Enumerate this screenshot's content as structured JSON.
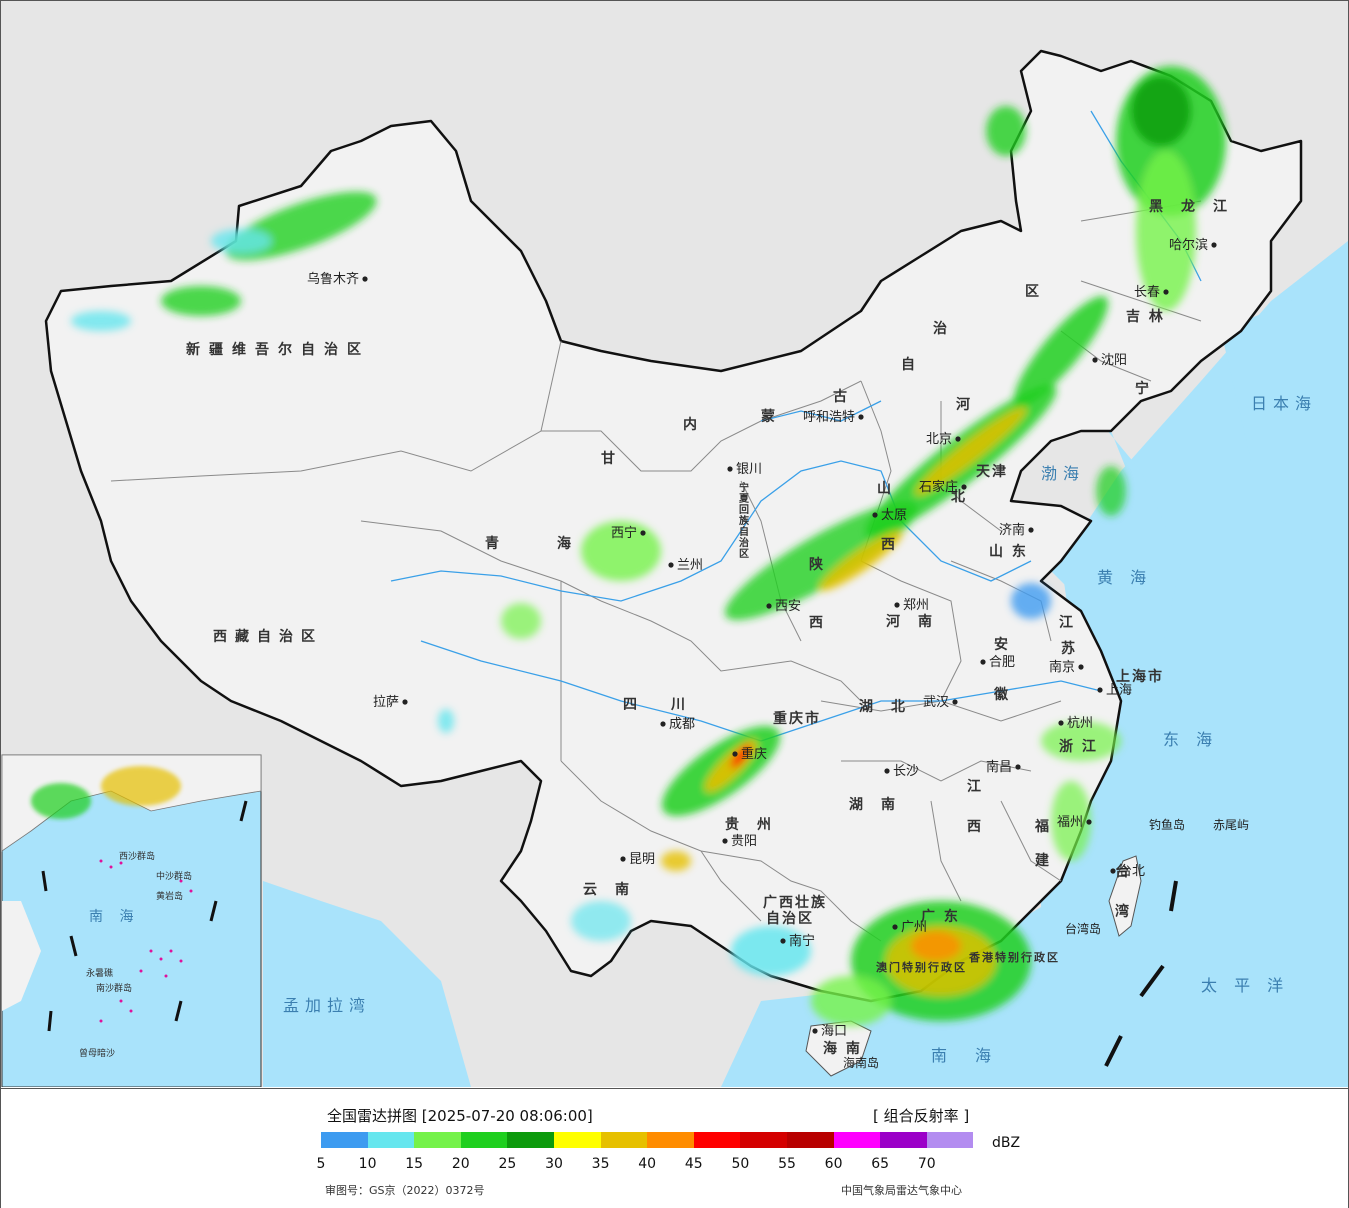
{
  "legend": {
    "title": "全国雷达拼图 [2025-07-20 08:06:00]",
    "product": "[ 组合反射率 ]",
    "unit": "dBZ",
    "ticks": [
      "5",
      "10",
      "15",
      "20",
      "25",
      "30",
      "35",
      "40",
      "45",
      "50",
      "55",
      "60",
      "65",
      "70"
    ],
    "colors": [
      "#3d9bf0",
      "#66e6ee",
      "#75f24a",
      "#1fcf1f",
      "#0c9a0c",
      "#ffff00",
      "#e6c000",
      "#ff8c00",
      "#ff0000",
      "#d40000",
      "#b80000",
      "#ff00ff",
      "#9b00c8",
      "#b38cf0"
    ],
    "approval": "审图号：GS京（2022）0372号",
    "credit": "中国气象局雷达气象中心"
  },
  "map": {
    "colors": {
      "land": "#f2f2f2",
      "sea": "#a9e3fb",
      "outside": "#e6e6e6",
      "border": "#111111",
      "province": "#888888",
      "river": "#3aa0e8"
    },
    "province_labels": [
      {
        "id": "xinjiang",
        "text": "新疆维吾尔自治区"
      },
      {
        "id": "xizang",
        "text": "西藏自治区"
      },
      {
        "id": "qinghai1",
        "text": "青"
      },
      {
        "id": "qinghai2",
        "text": "海"
      },
      {
        "id": "gansu",
        "text": "甘"
      },
      {
        "id": "neimeng1",
        "text": "内"
      },
      {
        "id": "neimeng2",
        "text": "蒙"
      },
      {
        "id": "neimeng3",
        "text": "古"
      },
      {
        "id": "neimeng4",
        "text": "自"
      },
      {
        "id": "neimeng5",
        "text": "治"
      },
      {
        "id": "neimeng6",
        "text": "区"
      },
      {
        "id": "heilongjiang",
        "text": "黑　龙　江"
      },
      {
        "id": "jilin",
        "text": "吉 林"
      },
      {
        "id": "liaoning",
        "text": "宁"
      },
      {
        "id": "hebei1",
        "text": "河"
      },
      {
        "id": "hebei2",
        "text": "北"
      },
      {
        "id": "tianjin",
        "text": "天津"
      },
      {
        "id": "shanxi1",
        "text": "山"
      },
      {
        "id": "shanxi2",
        "text": "西"
      },
      {
        "id": "shaanxi1",
        "text": "陕"
      },
      {
        "id": "shaanxi2",
        "text": "西"
      },
      {
        "id": "shandong",
        "text": "山 东"
      },
      {
        "id": "henan",
        "text": "河　南"
      },
      {
        "id": "jiangsu1",
        "text": "江"
      },
      {
        "id": "jiangsu2",
        "text": "苏"
      },
      {
        "id": "anhui1",
        "text": "安"
      },
      {
        "id": "anhui2",
        "text": "徽"
      },
      {
        "id": "shanghai",
        "text": "上海市"
      },
      {
        "id": "hubei",
        "text": "湖　北"
      },
      {
        "id": "zhejiang",
        "text": "浙 江"
      },
      {
        "id": "sichuan",
        "text": "四　　川"
      },
      {
        "id": "chongqing",
        "text": "重庆市"
      },
      {
        "id": "hunan",
        "text": "湖　南"
      },
      {
        "id": "jiangxi1",
        "text": "江"
      },
      {
        "id": "jiangxi2",
        "text": "西"
      },
      {
        "id": "fujian1",
        "text": "福"
      },
      {
        "id": "fujian2",
        "text": "建"
      },
      {
        "id": "guizhou",
        "text": "贵　州"
      },
      {
        "id": "yunnan",
        "text": "云　南"
      },
      {
        "id": "guangxi1",
        "text": "广西壮族"
      },
      {
        "id": "guangxi2",
        "text": "自治区"
      },
      {
        "id": "guangdong",
        "text": "广 东"
      },
      {
        "id": "hainan",
        "text": "海 南"
      },
      {
        "id": "taiwan1",
        "text": "台"
      },
      {
        "id": "taiwan2",
        "text": "湾"
      },
      {
        "id": "ningxia",
        "text": "宁夏回族自治区"
      },
      {
        "id": "xianggang",
        "text": "香港特别行政区"
      },
      {
        "id": "aomen",
        "text": "澳门特别行政区"
      }
    ],
    "city_labels": [
      {
        "id": "urumqi",
        "text": "乌鲁木齐"
      },
      {
        "id": "lasa",
        "text": "拉萨"
      },
      {
        "id": "xining",
        "text": "西宁"
      },
      {
        "id": "lanzhou",
        "text": "兰州"
      },
      {
        "id": "yinchuan",
        "text": "银川"
      },
      {
        "id": "huhehaote",
        "text": "呼和浩特"
      },
      {
        "id": "haerbin",
        "text": "哈尔滨"
      },
      {
        "id": "changchun",
        "text": "长春"
      },
      {
        "id": "shenyang",
        "text": "沈阳"
      },
      {
        "id": "beijing",
        "text": "北京"
      },
      {
        "id": "shijiazhuang",
        "text": "石家庄"
      },
      {
        "id": "taiyuan",
        "text": "太原"
      },
      {
        "id": "jinan",
        "text": "济南"
      },
      {
        "id": "zhengzhou",
        "text": "郑州"
      },
      {
        "id": "xian",
        "text": "西安"
      },
      {
        "id": "hefei",
        "text": "合肥"
      },
      {
        "id": "nanjing",
        "text": "南京"
      },
      {
        "id": "shanghai_c",
        "text": "上海"
      },
      {
        "id": "hangzhou",
        "text": "杭州"
      },
      {
        "id": "wuhan",
        "text": "武汉"
      },
      {
        "id": "chengdu",
        "text": "成都"
      },
      {
        "id": "chongqing_c",
        "text": "重庆"
      },
      {
        "id": "changsha",
        "text": "长沙"
      },
      {
        "id": "nanchang",
        "text": "南昌"
      },
      {
        "id": "fuzhou",
        "text": "福州"
      },
      {
        "id": "guiyang",
        "text": "贵阳"
      },
      {
        "id": "kunming",
        "text": "昆明"
      },
      {
        "id": "nanning",
        "text": "南宁"
      },
      {
        "id": "guangzhou",
        "text": "广州"
      },
      {
        "id": "haikou",
        "text": "海口"
      },
      {
        "id": "taibei",
        "text": "台北"
      },
      {
        "id": "hainandao",
        "text": "海南岛"
      },
      {
        "id": "taiwandao",
        "text": "台湾岛"
      },
      {
        "id": "diaoyu",
        "text": "钓鱼岛"
      },
      {
        "id": "chiwei",
        "text": "赤尾屿"
      }
    ],
    "sea_labels": [
      {
        "id": "riben",
        "text": "日本海"
      },
      {
        "id": "bohai",
        "text": "渤海"
      },
      {
        "id": "huanghai",
        "text": "黄 海"
      },
      {
        "id": "donghai",
        "text": "东 海"
      },
      {
        "id": "taipingyang",
        "text": "太 平 洋"
      },
      {
        "id": "nanhai",
        "text": "南　海"
      },
      {
        "id": "mengjiala",
        "text": "孟加拉湾"
      }
    ],
    "inset_labels": [
      {
        "id": "in_nanhai",
        "text": "南 海"
      },
      {
        "id": "in_zhongsha",
        "text": "中沙群岛"
      },
      {
        "id": "in_huangyan",
        "text": "黄岩岛"
      },
      {
        "id": "in_yongshu",
        "text": "永暑礁"
      },
      {
        "id": "in_nansha",
        "text": "南沙群岛"
      },
      {
        "id": "in_zengmu",
        "text": "曾母暗沙"
      },
      {
        "id": "in_xisha",
        "text": "西沙群岛"
      }
    ]
  }
}
